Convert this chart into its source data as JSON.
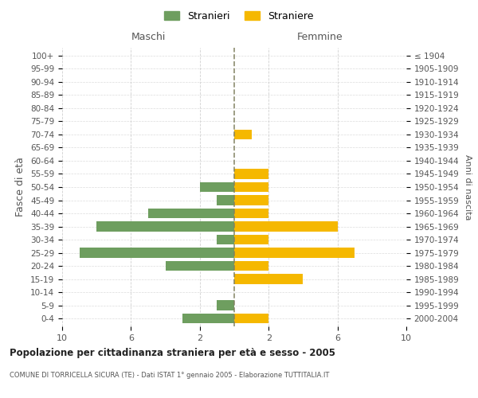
{
  "age_groups": [
    "0-4",
    "5-9",
    "10-14",
    "15-19",
    "20-24",
    "25-29",
    "30-34",
    "35-39",
    "40-44",
    "45-49",
    "50-54",
    "55-59",
    "60-64",
    "65-69",
    "70-74",
    "75-79",
    "80-84",
    "85-89",
    "90-94",
    "95-99",
    "100+"
  ],
  "birth_years": [
    "2000-2004",
    "1995-1999",
    "1990-1994",
    "1985-1989",
    "1980-1984",
    "1975-1979",
    "1970-1974",
    "1965-1969",
    "1960-1964",
    "1955-1959",
    "1950-1954",
    "1945-1949",
    "1940-1944",
    "1935-1939",
    "1930-1934",
    "1925-1929",
    "1920-1924",
    "1915-1919",
    "1910-1914",
    "1905-1909",
    "≤ 1904"
  ],
  "males": [
    3,
    1,
    0,
    0,
    4,
    9,
    1,
    8,
    5,
    1,
    2,
    0,
    0,
    0,
    0,
    0,
    0,
    0,
    0,
    0,
    0
  ],
  "females": [
    2,
    0,
    0,
    4,
    2,
    7,
    2,
    6,
    2,
    2,
    2,
    2,
    0,
    0,
    1,
    0,
    0,
    0,
    0,
    0,
    0
  ],
  "male_color": "#6e9e5f",
  "female_color": "#f5b800",
  "center_line_color": "#808060",
  "background_color": "#ffffff",
  "grid_color": "#cccccc",
  "title": "Popolazione per cittadinanza straniera per età e sesso - 2005",
  "subtitle": "COMUNE DI TORRICELLA SICURA (TE) - Dati ISTAT 1° gennaio 2005 - Elaborazione TUTTITALIA.IT",
  "left_header": "Maschi",
  "right_header": "Femmine",
  "left_ylabel": "Fasce di età",
  "right_ylabel": "Anni di nascita",
  "legend_male": "Stranieri",
  "legend_female": "Straniere"
}
